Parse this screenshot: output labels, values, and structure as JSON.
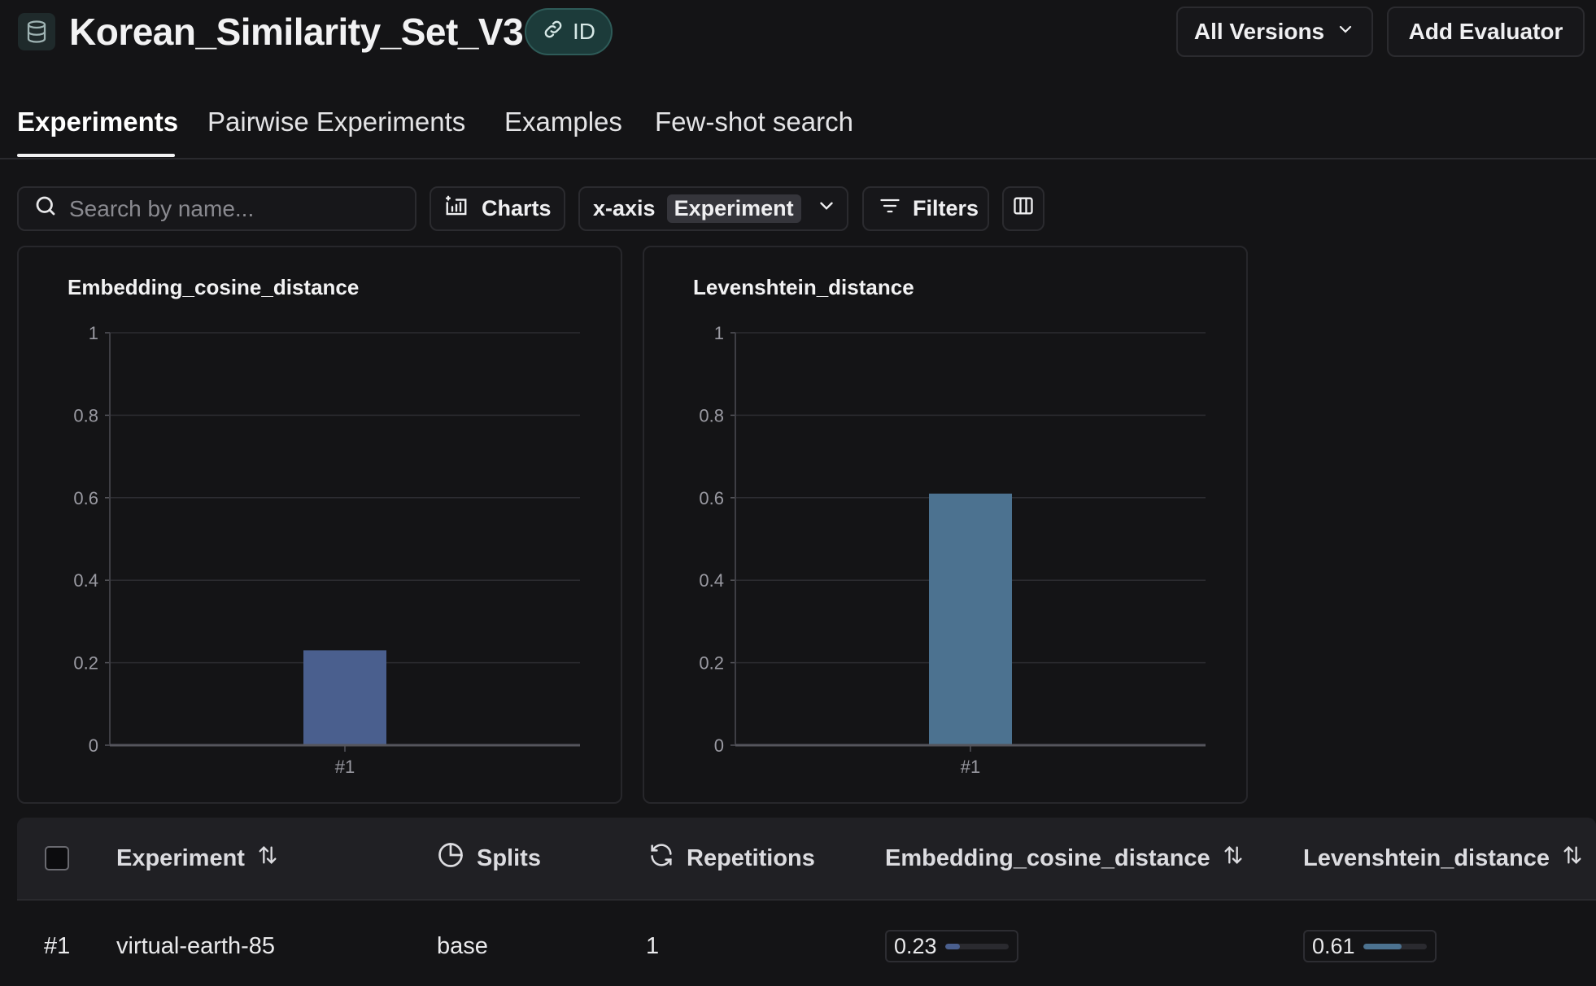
{
  "header": {
    "title": "Korean_Similarity_Set_V3",
    "id_badge": "ID",
    "versions_label": "All Versions",
    "add_evaluator_label": "Add Evaluator",
    "icons": {
      "dataset": "database-icon",
      "link": "link-icon",
      "chevron": "chevron-down-icon"
    }
  },
  "tabs": [
    {
      "label": "Experiments",
      "active": true
    },
    {
      "label": "Pairwise Experiments",
      "active": false
    },
    {
      "label": "Examples",
      "active": false
    },
    {
      "label": "Few-shot search",
      "active": false
    }
  ],
  "toolbar": {
    "search_placeholder": "Search by name...",
    "charts_label": "Charts",
    "xaxis_label": "x-axis",
    "xaxis_value": "Experiment",
    "filters_label": "Filters"
  },
  "chart_data": [
    {
      "type": "bar",
      "title": "Embedding_cosine_distance",
      "categories": [
        "#1"
      ],
      "values": [
        0.23
      ],
      "ylim": [
        0,
        1
      ],
      "yticks": [
        "0",
        "0.2",
        "0.4",
        "0.6",
        "0.8",
        "1"
      ],
      "grid": true,
      "color": "#4a5f8e"
    },
    {
      "type": "bar",
      "title": "Levenshtein_distance",
      "categories": [
        "#1"
      ],
      "values": [
        0.61
      ],
      "ylim": [
        0,
        1
      ],
      "yticks": [
        "0",
        "0.2",
        "0.4",
        "0.6",
        "0.8",
        "1"
      ],
      "grid": true,
      "color": "#4c7290"
    }
  ],
  "table": {
    "columns": {
      "experiment": "Experiment",
      "splits": "Splits",
      "repetitions": "Repetitions",
      "embedding": "Embedding_cosine_distance",
      "levenshtein": "Levenshtein_distance"
    },
    "rows": [
      {
        "index": "#1",
        "experiment": "virtual-earth-85",
        "splits": "base",
        "repetitions": "1",
        "embedding": "0.23",
        "embedding_value": 0.23,
        "levenshtein": "0.61",
        "levenshtein_value": 0.61
      }
    ],
    "colors": {
      "embedding_bar": "#4a5f8e",
      "levenshtein_bar": "#4c7290"
    }
  }
}
